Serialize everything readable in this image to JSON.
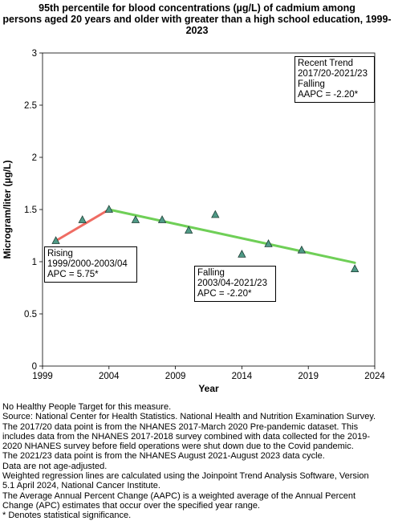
{
  "title_lines": [
    "95th percentile for blood concentrations (µg/L) of cadmium among",
    "persons aged 20 years and older with greater than a high school education, 1999-",
    "2023"
  ],
  "chart_data": {
    "type": "scatter",
    "title": "95th percentile for blood concentrations (µg/L) of cadmium among persons aged 20 years and older with greater than a high school education, 1999-2023",
    "xlabel": "Year",
    "ylabel": "Microgram/liter (µg/L)",
    "xlim": [
      1999,
      2024
    ],
    "ylim": [
      0,
      3
    ],
    "x_ticks": [
      1999,
      2004,
      2009,
      2014,
      2019,
      2024
    ],
    "y_ticks": [
      0,
      0.5,
      1,
      1.5,
      2,
      2.5,
      3
    ],
    "x_tick_labels": [
      "1999",
      "2004",
      "2009",
      "2014",
      "2019",
      "2024"
    ],
    "y_tick_labels": [
      "0",
      "0.5",
      "1",
      "1.5",
      "2",
      "2.5",
      "3"
    ],
    "grid": false,
    "points": [
      {
        "x": 2000,
        "y": 1.2
      },
      {
        "x": 2002,
        "y": 1.4
      },
      {
        "x": 2004,
        "y": 1.5
      },
      {
        "x": 2006,
        "y": 1.4
      },
      {
        "x": 2008,
        "y": 1.4
      },
      {
        "x": 2010,
        "y": 1.3
      },
      {
        "x": 2012,
        "y": 1.45
      },
      {
        "x": 2014,
        "y": 1.07
      },
      {
        "x": 2016,
        "y": 1.17
      },
      {
        "x": 2018.5,
        "y": 1.11
      },
      {
        "x": 2022.5,
        "y": 0.93
      }
    ],
    "trend_segments": [
      {
        "label": "Rising",
        "x0": 2000,
        "y0": 1.2,
        "x1": 2004,
        "y1": 1.5,
        "color": "#ef6c63"
      },
      {
        "label": "Falling",
        "x0": 2004,
        "y0": 1.5,
        "x1": 2022.5,
        "y1": 0.99,
        "color": "#6fcf57"
      }
    ],
    "marker_color": "#4f9a86",
    "annotations": [
      {
        "id": "rising",
        "lines": [
          "Rising",
          "1999/2000-2003/04",
          "APC =  5.75*"
        ]
      },
      {
        "id": "falling",
        "lines": [
          "Falling",
          "2003/04-2021/23",
          "APC = -2.20*"
        ]
      },
      {
        "id": "recent",
        "lines": [
          "Recent Trend",
          "2017/20-2021/23",
          "Falling",
          "AAPC = -2.20*"
        ]
      }
    ]
  },
  "footnotes": [
    "No Healthy People Target for this measure.",
    "Source: National Center for Health Statistics. National Health and Nutrition Examination Survey.",
    "The 2017/20 data point is from the NHANES 2017-March 2020 Pre-pandemic dataset. This",
    "includes data from the NHANES 2017-2018 survey combined with data collected for the 2019-",
    "2020 NHANES survey before field operations were shut down due to the Covid pandemic.",
    "The 2021/23 data point is from the NHANES August 2021-August 2023 data cycle.",
    "Data are not age-adjusted.",
    "Weighted regression lines are calculated using the Joinpoint Trend Analysis Software, Version",
    "5.1 April 2024, National Cancer Institute.",
    "The Average Annual Percent Change (AAPC) is a weighted average of the Annual Percent",
    "Change (APC) estimates that occur over the specified year range.",
    "* Denotes statistical significance."
  ]
}
